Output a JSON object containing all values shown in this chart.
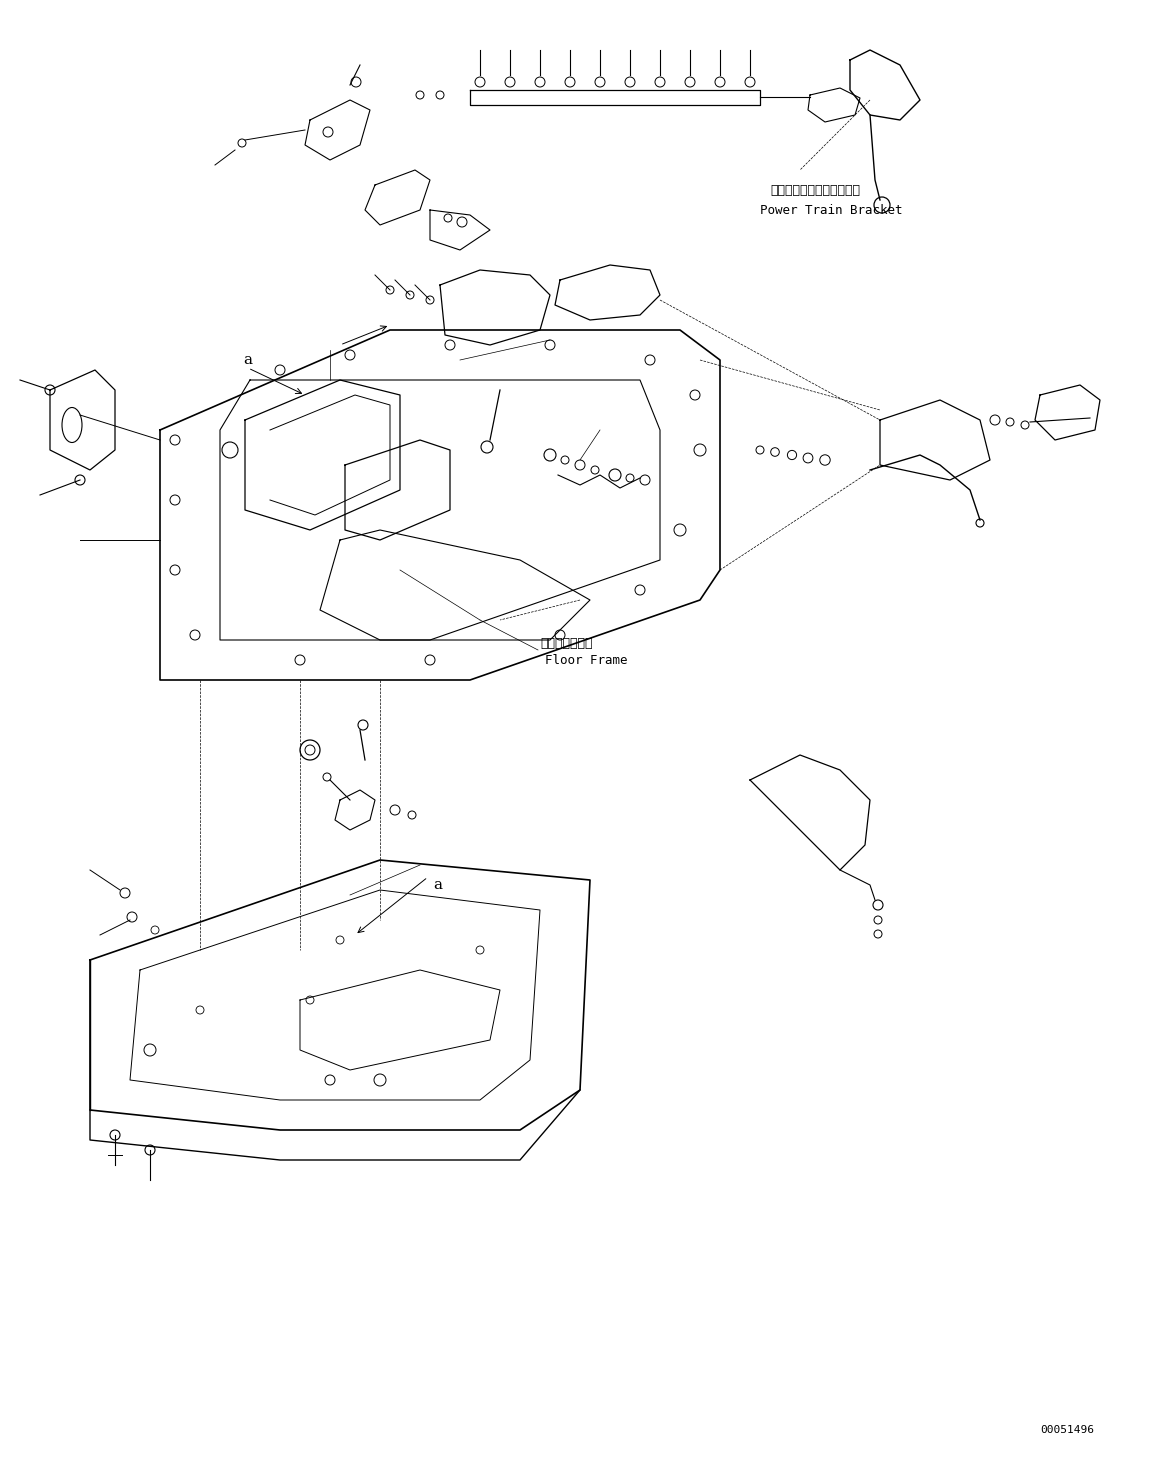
{
  "background_color": "#ffffff",
  "line_color": "#000000",
  "fig_width": 11.59,
  "fig_height": 14.59,
  "dpi": 100,
  "label_power_train_jp": "パワートレインブラケット",
  "label_power_train_en": "Power Train Bracket",
  "label_floor_frame_jp": "フロアフレーム",
  "label_floor_frame_en": "Floor Frame",
  "label_a1": "a",
  "label_a2": "a",
  "part_number": "00051496",
  "font_size_label": 9,
  "font_size_part": 8
}
